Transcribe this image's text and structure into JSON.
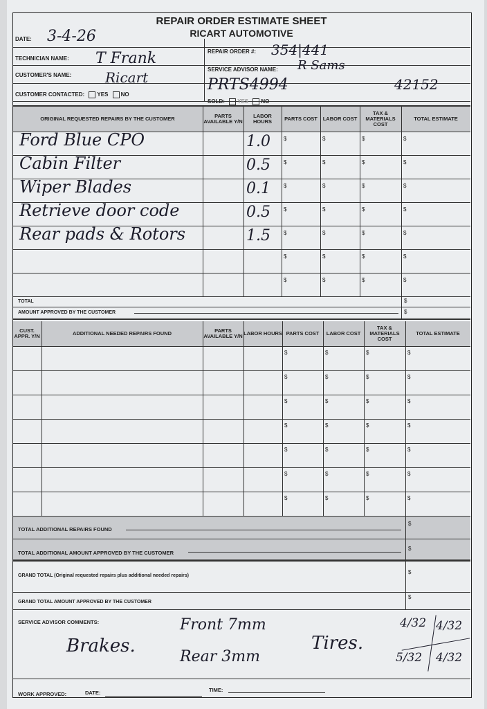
{
  "title": "REPAIR ORDER ESTIMATE SHEET",
  "company": "RICART AUTOMOTIVE",
  "header": {
    "date_label": "DATE:",
    "date_value": "3-4-26",
    "technician_label": "TECHNICIAN NAME:",
    "technician_value": "T Frank",
    "customer_label": "CUSTOMER'S NAME:",
    "customer_value": "Ricart",
    "contacted_label": "CUSTOMER CONTACTED:",
    "yes": "YES",
    "no": "NO",
    "repair_order_label": "REPAIR ORDER #:",
    "repair_order_value": "354|441",
    "advisor_label": "SERVICE ADVISOR NAME:",
    "advisor_value": "R Sams",
    "extra_value_1": "PRTS4994",
    "extra_value_2": "42152",
    "sold_label": "SOLD:"
  },
  "table1": {
    "headers": [
      "ORIGINAL REQUESTED REPAIRS BY THE CUSTOMER",
      "PARTS AVAILABLE Y/N",
      "LABOR HOURS",
      "PARTS COST",
      "LABOR COST",
      "TAX & MATERIALS COST",
      "TOTAL ESTIMATE"
    ],
    "rows": [
      {
        "repair": "Ford Blue CPO",
        "hours": "1.0"
      },
      {
        "repair": "Cabin Filter",
        "hours": "0.5"
      },
      {
        "repair": "Wiper Blades",
        "hours": "0.1"
      },
      {
        "repair": "Retrieve door code",
        "hours": "0.5"
      },
      {
        "repair": "Rear pads & Rotors",
        "hours": "1.5"
      },
      {
        "repair": "",
        "hours": ""
      },
      {
        "repair": "",
        "hours": ""
      }
    ],
    "total_label": "TOTAL",
    "approved_label": "AMOUNT APPROVED BY THE CUSTOMER",
    "currency": "$"
  },
  "table2": {
    "headers": [
      "CUST. APPR. Y/N",
      "ADDITIONAL NEEDED REPAIRS FOUND",
      "PARTS AVAILABLE Y/N",
      "LABOR HOURS",
      "PARTS COST",
      "LABOR COST",
      "TAX & MATERIALS COST",
      "TOTAL ESTIMATE"
    ],
    "row_count": 7,
    "total_label": "TOTAL ADDITIONAL REPAIRS FOUND",
    "approved_label": "TOTAL ADDITIONAL AMOUNT APPROVED BY THE CUSTOMER"
  },
  "grand_total_label": "GRAND TOTAL (Original requested repairs plus additional needed repairs)",
  "grand_total_approved_label": "GRAND TOTAL AMOUNT APPROVED BY THE CUSTOMER",
  "comments": {
    "label": "SERVICE ADVISOR COMMENTS:",
    "brakes": "Brakes.",
    "front": "Front 7mm",
    "rear": "Rear 3mm",
    "tires": "Tires.",
    "tire_lf": "4/32",
    "tire_rf": "4/32",
    "tire_lr": "5/32",
    "tire_rr": "4/32"
  },
  "footer": {
    "work_approved": "WORK APPROVED:",
    "date": "DATE:",
    "time": "TIME:"
  }
}
